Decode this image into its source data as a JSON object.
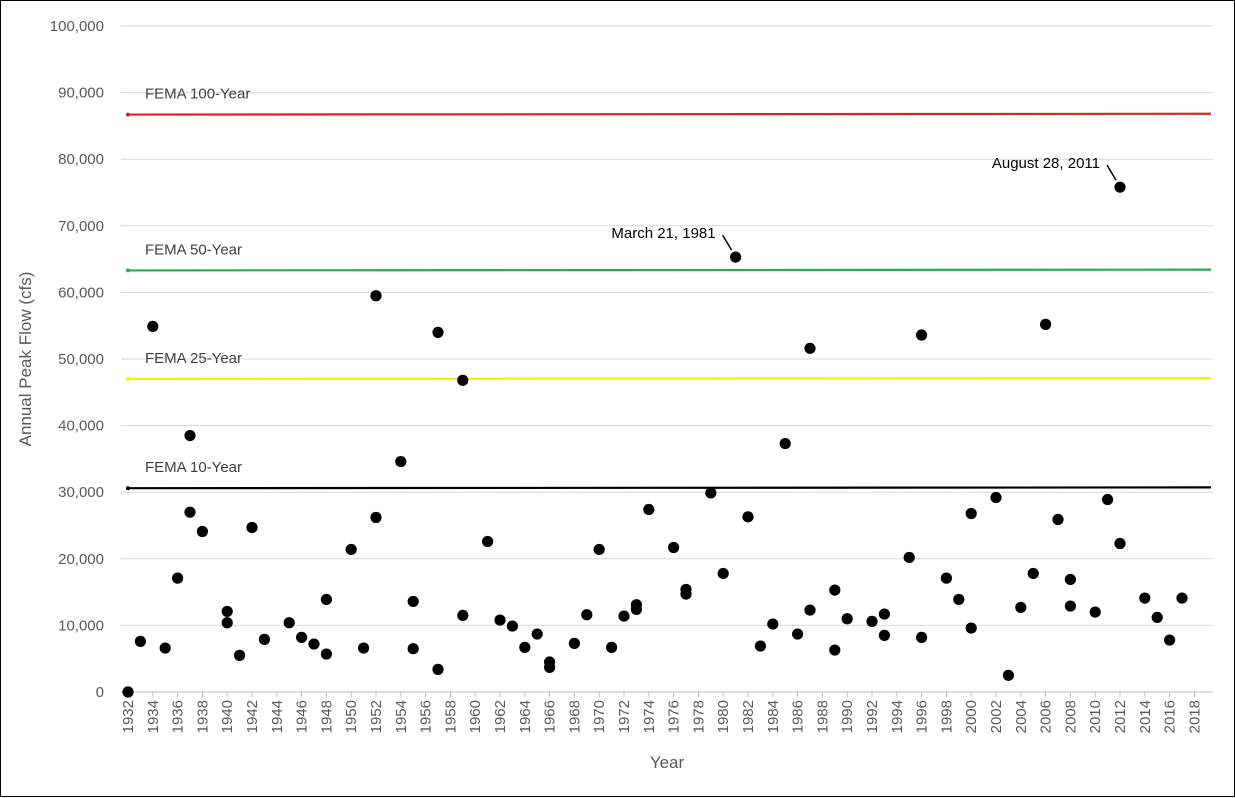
{
  "chart_data": {
    "type": "scatter",
    "title": "",
    "xlabel": "Year",
    "ylabel": "Annual Peak Flow (cfs)",
    "xlim": [
      1932,
      2019
    ],
    "ylim": [
      0,
      100000
    ],
    "x_ticks": [
      "1932",
      "1934",
      "1936",
      "1938",
      "1940",
      "1942",
      "1944",
      "1946",
      "1948",
      "1950",
      "1952",
      "1954",
      "1956",
      "1958",
      "1960",
      "1962",
      "1964",
      "1966",
      "1968",
      "1970",
      "1972",
      "1974",
      "1976",
      "1978",
      "1980",
      "1982",
      "1984",
      "1986",
      "1988",
      "1990",
      "1992",
      "1994",
      "1996",
      "1998",
      "2000",
      "2002",
      "2004",
      "2006",
      "2008",
      "2010",
      "2012",
      "2014",
      "2016",
      "2018"
    ],
    "y_ticks": [
      "0",
      "10,000",
      "20,000",
      "30,000",
      "40,000",
      "50,000",
      "60,000",
      "70,000",
      "80,000",
      "90,000",
      "100,000"
    ],
    "grid": true,
    "reference_lines": [
      {
        "label": "FEMA 100-Year",
        "value": 86700,
        "color": "#e0201b"
      },
      {
        "label": "FEMA 50-Year",
        "value": 63300,
        "color": "#21b04b"
      },
      {
        "label": "FEMA 25-Year",
        "value": 47000,
        "color": "#f5f000"
      },
      {
        "label": "FEMA 10-Year",
        "value": 30600,
        "color": "#000000"
      }
    ],
    "annotations": [
      {
        "text": "March 21, 1981",
        "x": 1981,
        "y": 65300
      },
      {
        "text": "August 28, 2011",
        "x": 2012,
        "y": 75800
      }
    ],
    "series": [
      {
        "marker_color": "#000000",
        "points": [
          [
            1932,
            0
          ],
          [
            1933,
            7600
          ],
          [
            1934,
            54900
          ],
          [
            1935,
            6600
          ],
          [
            1936,
            17100
          ],
          [
            1937,
            38500
          ],
          [
            1937,
            27000
          ],
          [
            1938,
            24100
          ],
          [
            1940,
            10400
          ],
          [
            1940,
            12100
          ],
          [
            1941,
            5500
          ],
          [
            1942,
            24700
          ],
          [
            1943,
            7900
          ],
          [
            1945,
            10400
          ],
          [
            1946,
            8200
          ],
          [
            1947,
            7200
          ],
          [
            1948,
            5700
          ],
          [
            1948,
            13900
          ],
          [
            1950,
            21400
          ],
          [
            1951,
            6600
          ],
          [
            1952,
            59500
          ],
          [
            1952,
            26200
          ],
          [
            1954,
            34600
          ],
          [
            1955,
            6500
          ],
          [
            1955,
            13600
          ],
          [
            1957,
            54000
          ],
          [
            1957,
            3400
          ],
          [
            1959,
            46800
          ],
          [
            1959,
            11500
          ],
          [
            1961,
            22600
          ],
          [
            1962,
            10800
          ],
          [
            1963,
            9900
          ],
          [
            1964,
            6700
          ],
          [
            1965,
            8700
          ],
          [
            1966,
            4500
          ],
          [
            1966,
            3700
          ],
          [
            1968,
            7300
          ],
          [
            1969,
            11600
          ],
          [
            1970,
            21400
          ],
          [
            1971,
            6700
          ],
          [
            1972,
            11400
          ],
          [
            1973,
            12400
          ],
          [
            1973,
            13100
          ],
          [
            1974,
            27400
          ],
          [
            1976,
            21700
          ],
          [
            1977,
            14700
          ],
          [
            1977,
            15400
          ],
          [
            1979,
            29900
          ],
          [
            1980,
            17800
          ],
          [
            1981,
            65300
          ],
          [
            1982,
            26300
          ],
          [
            1983,
            6900
          ],
          [
            1984,
            10200
          ],
          [
            1985,
            37300
          ],
          [
            1986,
            8700
          ],
          [
            1987,
            51600
          ],
          [
            1987,
            12300
          ],
          [
            1989,
            6300
          ],
          [
            1989,
            15300
          ],
          [
            1990,
            11000
          ],
          [
            1992,
            10600
          ],
          [
            1993,
            8500
          ],
          [
            1993,
            11700
          ],
          [
            1995,
            20200
          ],
          [
            1996,
            53600
          ],
          [
            1996,
            8200
          ],
          [
            1998,
            17100
          ],
          [
            1999,
            13900
          ],
          [
            2000,
            26800
          ],
          [
            2000,
            9600
          ],
          [
            2002,
            29200
          ],
          [
            2003,
            2500
          ],
          [
            2004,
            12700
          ],
          [
            2005,
            17800
          ],
          [
            2006,
            55200
          ],
          [
            2007,
            25900
          ],
          [
            2008,
            16900
          ],
          [
            2008,
            12900
          ],
          [
            2010,
            12000
          ],
          [
            2011,
            28900
          ],
          [
            2012,
            75800
          ],
          [
            2012,
            22300
          ],
          [
            2014,
            14100
          ],
          [
            2015,
            11200
          ],
          [
            2016,
            7800
          ],
          [
            2017,
            14100
          ]
        ]
      }
    ]
  }
}
